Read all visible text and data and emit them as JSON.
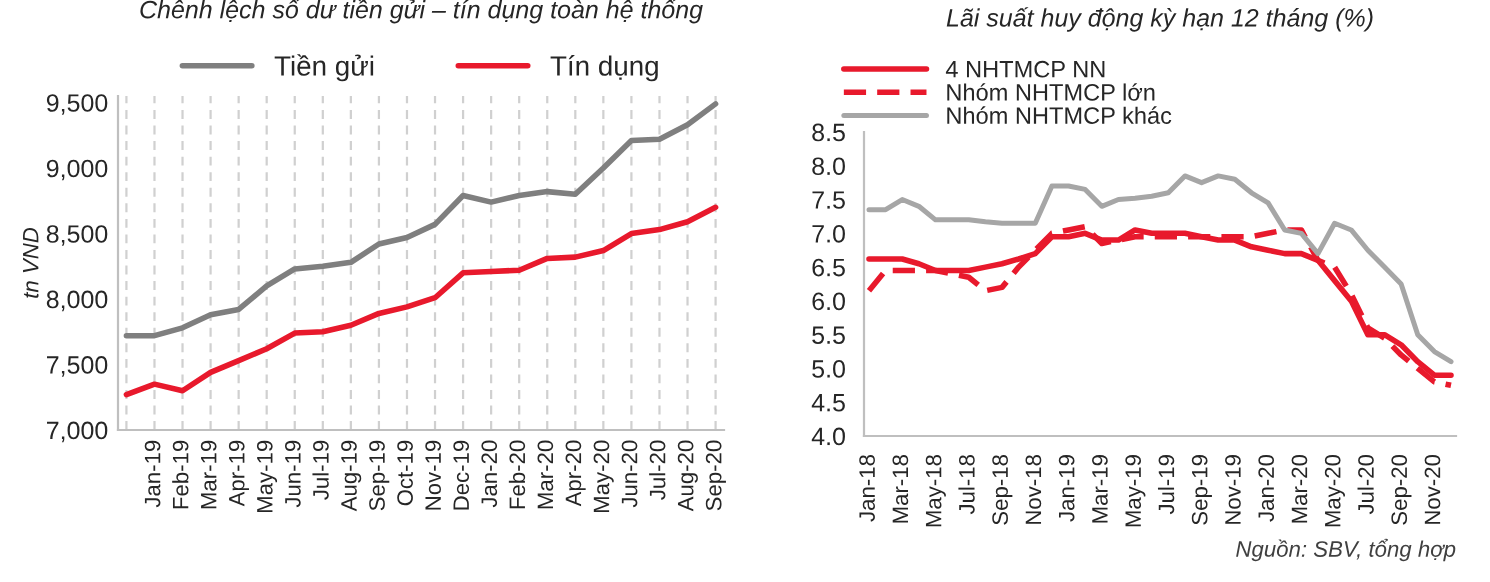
{
  "chart_data": [
    {
      "type": "line",
      "title": "Chênh lệch số dư tiền gửi – tín dụng toàn hệ thống",
      "ylabel": "tn VND",
      "categories": [
        null,
        "Jan-19",
        "Feb-19",
        "Mar-19",
        "Apr-19",
        "May-19",
        "Jun-19",
        "Jul-19",
        "Aug-19",
        "Sep-19",
        "Oct-19",
        "Nov-19",
        "Dec-19",
        "Jan-20",
        "Feb-20",
        "Mar-20",
        "Apr-20",
        "May-20",
        "Jun-20",
        "Jul-20",
        "Aug-20",
        "Sep-20"
      ],
      "series": [
        {
          "name": "Tiền gửi",
          "color": "#7f7f7f",
          "values": [
            7720,
            7720,
            7780,
            7880,
            7920,
            8100,
            8230,
            8250,
            8280,
            8420,
            8470,
            8570,
            8790,
            8740,
            8790,
            8820,
            8800,
            9000,
            9210,
            9220,
            9330,
            9490
          ]
        },
        {
          "name": "Tín dụng",
          "color": "#e8192c",
          "values": [
            7270,
            7350,
            7300,
            7440,
            7530,
            7620,
            7740,
            7750,
            7800,
            7890,
            7940,
            8010,
            8200,
            8210,
            8220,
            8310,
            8320,
            8370,
            8500,
            8530,
            8590,
            8700
          ]
        }
      ],
      "ylim": [
        7000,
        9550
      ],
      "yticks": [
        {
          "value": 7000,
          "label": "7,000"
        },
        {
          "value": 7500,
          "label": "7,500"
        },
        {
          "value": 8000,
          "label": "8,000"
        },
        {
          "value": 8500,
          "label": "8,500"
        },
        {
          "value": 9000,
          "label": "9,000"
        },
        {
          "value": 9500,
          "label": "9,500"
        }
      ],
      "grid": "x",
      "legend": "top"
    },
    {
      "type": "line",
      "title": "Lãi suất huy động kỳ hạn 12 tháng (%)",
      "categories": [
        "Jan-18",
        null,
        "Mar-18",
        null,
        "May-18",
        null,
        "Jul-18",
        null,
        "Sep-18",
        null,
        "Nov-18",
        null,
        "Jan-19",
        null,
        "Mar-19",
        null,
        "May-19",
        null,
        "Jul-19",
        null,
        "Sep-19",
        null,
        "Nov-19",
        null,
        "Jan-20",
        null,
        "Mar-20",
        null,
        "May-20",
        null,
        "Jul-20",
        null,
        "Sep-20",
        null,
        "Nov-20",
        null
      ],
      "series": [
        {
          "name": "4 NHTMCP NN",
          "color": "#e8192c",
          "line_style": "solid",
          "values": [
            6.62,
            6.62,
            6.62,
            6.55,
            6.45,
            6.45,
            6.45,
            6.5,
            6.55,
            6.62,
            6.7,
            6.95,
            6.95,
            7.0,
            6.9,
            6.9,
            7.05,
            7.0,
            7.0,
            7.0,
            6.95,
            6.9,
            6.9,
            6.8,
            6.75,
            6.7,
            6.7,
            6.6,
            6.3,
            6.0,
            5.5,
            5.5,
            5.35,
            5.1,
            4.9,
            4.9
          ]
        },
        {
          "name": "Nhóm NHTMCP lớn",
          "color": "#e8192c",
          "line_style": "dashed",
          "values": [
            6.15,
            6.45,
            6.45,
            6.45,
            6.45,
            6.4,
            6.35,
            6.15,
            6.2,
            6.5,
            6.75,
            7.0,
            7.05,
            7.1,
            6.85,
            6.9,
            6.95,
            6.95,
            6.95,
            6.95,
            6.95,
            6.95,
            6.95,
            6.95,
            7.0,
            7.05,
            7.05,
            6.6,
            6.5,
            6.1,
            5.6,
            5.45,
            5.2,
            5.0,
            4.8,
            4.75
          ]
        },
        {
          "name": "Nhóm NHTMCP khác",
          "color": "#a6a6a6",
          "line_style": "solid",
          "values": [
            7.35,
            7.35,
            7.5,
            7.4,
            7.2,
            7.2,
            7.2,
            7.17,
            7.15,
            7.15,
            7.15,
            7.7,
            7.7,
            7.65,
            7.4,
            7.5,
            7.52,
            7.55,
            7.6,
            7.85,
            7.75,
            7.85,
            7.8,
            7.6,
            7.45,
            7.05,
            7.0,
            6.7,
            7.15,
            7.05,
            6.75,
            6.5,
            6.25,
            5.5,
            5.25,
            5.1
          ]
        }
      ],
      "ylim": [
        4.0,
        8.5
      ],
      "yticks": [
        {
          "value": 4.0,
          "label": "4.0"
        },
        {
          "value": 4.5,
          "label": "4.5"
        },
        {
          "value": 5.0,
          "label": "5.0"
        },
        {
          "value": 5.5,
          "label": "5.5"
        },
        {
          "value": 6.0,
          "label": "6.0"
        },
        {
          "value": 6.5,
          "label": "6.5"
        },
        {
          "value": 7.0,
          "label": "7.0"
        },
        {
          "value": 7.5,
          "label": "7.5"
        },
        {
          "value": 8.0,
          "label": "8.0"
        },
        {
          "value": 8.5,
          "label": "8.5"
        }
      ],
      "legend": "top left",
      "annotations": [
        "Nguồn: SBV, tổng hợp"
      ]
    }
  ]
}
